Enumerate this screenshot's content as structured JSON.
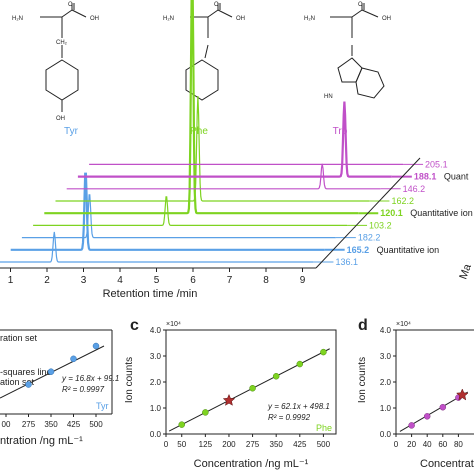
{
  "panel_b": {
    "x_ticks": [
      "1",
      "2",
      "3",
      "4",
      "5",
      "6",
      "7",
      "8",
      "9"
    ],
    "xlabel": "Retention time /min",
    "depth_axis_label": "Ma",
    "molecules": [
      {
        "name": "Tyr",
        "color": "#5aa0e6"
      },
      {
        "name": "Phe",
        "color": "#7ed321"
      },
      {
        "name": "Trp",
        "color": "#c050c8"
      }
    ],
    "traces": [
      {
        "mz": "205.1",
        "bold": false,
        "color": "#c050c8",
        "note": ""
      },
      {
        "mz": "188.1",
        "bold": true,
        "color": "#c050c8",
        "note": "Quant"
      },
      {
        "mz": "146.2",
        "bold": false,
        "color": "#c050c8",
        "note": ""
      },
      {
        "mz": "162.2",
        "bold": false,
        "color": "#7ed321",
        "note": ""
      },
      {
        "mz": "120.1",
        "bold": true,
        "color": "#7ed321",
        "note": "Quantitative ion"
      },
      {
        "mz": "103.2",
        "bold": false,
        "color": "#7ed321",
        "note": ""
      },
      {
        "mz": "182.2",
        "bold": false,
        "color": "#5aa0e6",
        "note": ""
      },
      {
        "mz": "165.2",
        "bold": true,
        "color": "#5aa0e6",
        "note": "Quantitative ion"
      },
      {
        "mz": "136.1",
        "bold": false,
        "color": "#5aa0e6",
        "note": ""
      }
    ]
  },
  "panel_a": {
    "legend_line1": "ration set",
    "legend_line2": "-squares line",
    "legend_line3": "ation set",
    "equation": "y = 16.8x + 99.1",
    "r2": "R² = 0.9997",
    "analyte": "Tyr",
    "xlabel": "ntration /ng mL⁻¹",
    "x_ticks": [
      "00",
      "275",
      "350",
      "425",
      "500"
    ]
  },
  "panel_c": {
    "letter": "c",
    "ylabel": "Ion counts",
    "yscale": "×10⁴",
    "y_ticks": [
      "0.0",
      "1.0",
      "2.0",
      "3.0",
      "4.0"
    ],
    "x_ticks": [
      "0",
      "50",
      "125",
      "200",
      "275",
      "350",
      "425",
      "500"
    ],
    "xlabel": "Concentration /ng mL⁻¹",
    "equation": "y = 62.1x + 498.1",
    "r2": "R² = 0.9992",
    "analyte": "Phe"
  },
  "panel_d": {
    "letter": "d",
    "ylabel": "Ion counts",
    "yscale": "×10⁴",
    "y_ticks": [
      "0.0",
      "1.0",
      "2.0",
      "3.0",
      "4.0"
    ],
    "x_ticks": [
      "0",
      "20",
      "40",
      "60",
      "80"
    ],
    "xlabel": "Concentration"
  },
  "chart_data": [
    {
      "type": "line",
      "panel": "b",
      "xlabel": "Retention time /min",
      "xlim": [
        1,
        9
      ],
      "series": [
        {
          "name": "205.1",
          "x": [
            0.6,
            9.6
          ],
          "y": [
            0,
            0
          ],
          "peaks": []
        },
        {
          "name": "188.1",
          "peaks": [
            {
              "x": 8.0,
              "height": 0.3
            }
          ]
        },
        {
          "name": "146.2",
          "peaks": [
            {
              "x": 7.7,
              "height": 0.1
            }
          ]
        },
        {
          "name": "162.2",
          "peaks": [
            {
              "x": 4.6,
              "height": 0.42
            }
          ]
        },
        {
          "name": "120.1",
          "peaks": [
            {
              "x": 4.75,
              "height": 1.0
            }
          ]
        },
        {
          "name": "103.2",
          "peaks": [
            {
              "x": 4.35,
              "height": 0.12
            }
          ]
        },
        {
          "name": "182.2",
          "peaks": [
            {
              "x": 2.55,
              "height": 0.18
            }
          ]
        },
        {
          "name": "165.2",
          "peaks": [
            {
              "x": 2.75,
              "height": 0.32
            }
          ]
        },
        {
          "name": "136.1",
          "peaks": [
            {
              "x": 2.2,
              "height": 0.12
            }
          ]
        }
      ]
    },
    {
      "type": "scatter",
      "panel": "c",
      "title": "",
      "xlabel": "Concentration /ng mL⁻¹",
      "ylabel": "Ion counts",
      "xlim": [
        0,
        540
      ],
      "ylim": [
        0,
        40000
      ],
      "series": [
        {
          "name": "Phe",
          "x": [
            50,
            125,
            275,
            350,
            425,
            500
          ],
          "y": [
            3600,
            8300,
            17600,
            22200,
            26900,
            31500
          ]
        },
        {
          "name": "",
          "x": [
            200
          ],
          "y": [
            12900
          ]
        }
      ],
      "fit": {
        "slope": 62.1,
        "intercept": 498.1
      }
    },
    {
      "type": "scatter",
      "panel": "d",
      "xlabel": "Concentration",
      "ylabel": "Ion counts",
      "xlim": [
        0,
        100
      ],
      "ylim": [
        0,
        40000
      ],
      "series": [
        {
          "name": "",
          "x": [
            20,
            40,
            60,
            80
          ],
          "y": [
            3300,
            6800,
            10300,
            14000
          ]
        },
        {
          "name": "",
          "x": [
            85
          ],
          "y": [
            15000
          ]
        }
      ]
    },
    {
      "type": "scatter",
      "panel": "a",
      "xlabel": "ntration /ng mL⁻¹",
      "series": [
        {
          "name": "Tyr",
          "x": [
            275,
            350,
            425,
            500
          ],
          "y": [
            4720,
            5980,
            7240,
            8500
          ]
        }
      ],
      "fit": {
        "slope": 16.8,
        "intercept": 99.1
      }
    }
  ]
}
